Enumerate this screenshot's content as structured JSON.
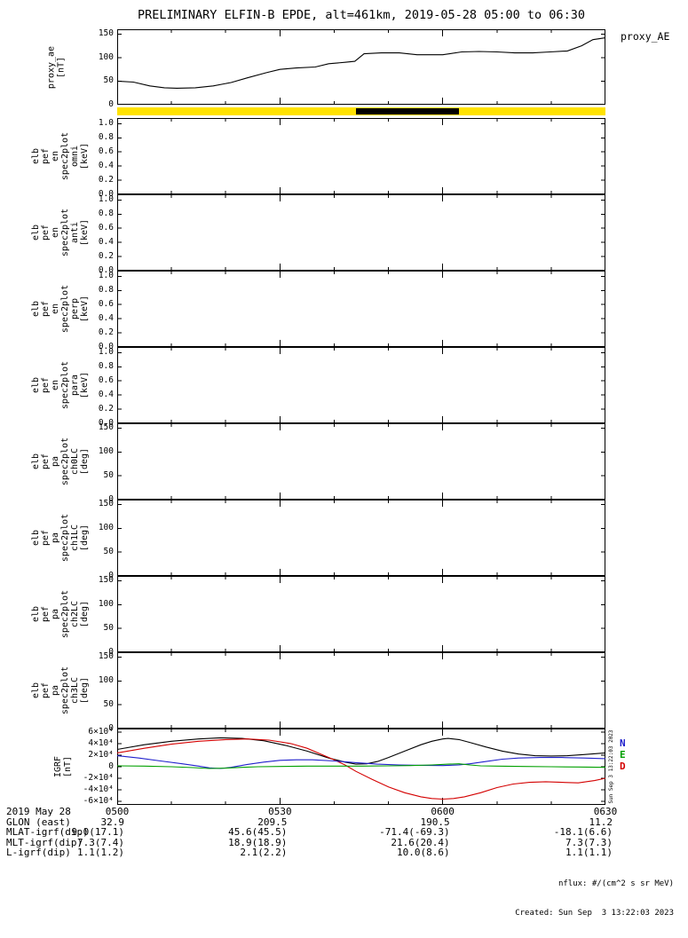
{
  "title": "PRELIMINARY ELFIN-B EPDE, alt=461km, 2019-05-28 05:00 to 06:30",
  "proxy_right_label": "proxy_AE",
  "time_axis": {
    "date": "2019 May 28",
    "labels": [
      "0500",
      "0530",
      "0600",
      "0630"
    ],
    "minutes": [
      0,
      30,
      60,
      90
    ],
    "minor_step_min": 10
  },
  "status_bar": {
    "bar_color": "#ffe200",
    "segment_color": "#000000",
    "segment_start_min": 44,
    "segment_end_min": 63
  },
  "panels": [
    {
      "id": "omni",
      "kind": "kev",
      "label_block1": [
        "elb",
        "pef",
        "en",
        "spec2plot"
      ],
      "label_block2": [
        "omni",
        "[keV]"
      ],
      "yticks": [
        0,
        0.2,
        0.4,
        0.6,
        0.8,
        1.0
      ],
      "ytick_labels": [
        "0.0",
        "0.2",
        "0.4",
        "0.6",
        "0.8",
        "1.0"
      ]
    },
    {
      "id": "anti",
      "kind": "kev",
      "label_block1": [
        "elb",
        "pef",
        "en",
        "spec2plot"
      ],
      "label_block2": [
        "anti",
        "[keV]"
      ],
      "yticks": [
        0,
        0.2,
        0.4,
        0.6,
        0.8,
        1.0
      ],
      "ytick_labels": [
        "0.0",
        "0.2",
        "0.4",
        "0.6",
        "0.8",
        "1.0"
      ]
    },
    {
      "id": "perp",
      "kind": "kev",
      "label_block1": [
        "elb",
        "pef",
        "en",
        "spec2plot"
      ],
      "label_block2": [
        "perp",
        "[keV]"
      ],
      "yticks": [
        0,
        0.2,
        0.4,
        0.6,
        0.8,
        1.0
      ],
      "ytick_labels": [
        "0.0",
        "0.2",
        "0.4",
        "0.6",
        "0.8",
        "1.0"
      ]
    },
    {
      "id": "para",
      "kind": "kev",
      "label_block1": [
        "elb",
        "pef",
        "en",
        "spec2plot"
      ],
      "label_block2": [
        "para",
        "[keV]"
      ],
      "yticks": [
        0,
        0.2,
        0.4,
        0.6,
        0.8,
        1.0
      ],
      "ytick_labels": [
        "0.0",
        "0.2",
        "0.4",
        "0.6",
        "0.8",
        "1.0"
      ]
    },
    {
      "id": "ch0LC",
      "kind": "deg",
      "label_block1": [
        "elb",
        "pef",
        "pa",
        "spec2plot"
      ],
      "label_block2": [
        "ch0LC",
        "[deg]"
      ],
      "yticks": [
        0,
        50,
        100,
        150
      ],
      "ytick_labels": [
        "0",
        "50",
        "100",
        "150"
      ]
    },
    {
      "id": "ch1LC",
      "kind": "deg",
      "label_block1": [
        "elb",
        "pef",
        "pa",
        "spec2plot"
      ],
      "label_block2": [
        "ch1LC",
        "[deg]"
      ],
      "yticks": [
        0,
        50,
        100,
        150
      ],
      "ytick_labels": [
        "0",
        "50",
        "100",
        "150"
      ]
    },
    {
      "id": "ch2LC",
      "kind": "deg",
      "label_block1": [
        "elb",
        "pef",
        "pa",
        "spec2plot"
      ],
      "label_block2": [
        "ch2LC",
        "[deg]"
      ],
      "yticks": [
        0,
        50,
        100,
        150
      ],
      "ytick_labels": [
        "0",
        "50",
        "100",
        "150"
      ]
    },
    {
      "id": "ch3LC",
      "kind": "deg",
      "label_block1": [
        "elb",
        "pef",
        "pa",
        "spec2plot"
      ],
      "label_block2": [
        "ch3LC",
        "[deg]"
      ],
      "yticks": [
        0,
        50,
        100,
        150
      ],
      "ytick_labels": [
        "0",
        "50",
        "100",
        "150"
      ]
    }
  ],
  "chart_data": [
    {
      "type": "line",
      "name": "proxy_AE",
      "ylabel_lines": [
        "proxy_ae",
        "[nT]"
      ],
      "ylim": [
        0,
        150
      ],
      "yticks": [
        0,
        50,
        100,
        150
      ],
      "ytick_labels": [
        "0",
        "50",
        "100",
        "150"
      ],
      "color": "#000000",
      "x_minutes": [
        0,
        3,
        6,
        8.7,
        11,
        14.4,
        17.7,
        21,
        24,
        27.5,
        30,
        33,
        36.5,
        39,
        42,
        43.8,
        45.5,
        48.7,
        52,
        55.3,
        60,
        63.5,
        66.7,
        70,
        73.3,
        76.6,
        79.8,
        83,
        85.6,
        87.7,
        90
      ],
      "values": [
        50,
        48,
        40,
        36,
        35,
        36,
        40,
        47,
        57,
        68,
        75,
        78,
        80,
        87,
        90,
        92,
        108,
        110,
        110,
        106,
        106,
        112,
        113,
        112,
        110,
        110,
        112,
        114,
        125,
        138,
        142
      ]
    },
    {
      "type": "line",
      "name": "IGRF",
      "ylabel_lines": [
        "IGRF",
        "[nT]"
      ],
      "ylim": [
        -60000,
        60000
      ],
      "yticks": [
        -60000,
        -40000,
        -20000,
        0,
        20000,
        40000,
        60000
      ],
      "ytick_labels": [
        "-6×10⁴",
        "-4×10⁴",
        "-2×10⁴",
        "0",
        "2×10⁴",
        "4×10⁴",
        "6×10⁴"
      ],
      "legend": [
        {
          "label": "N",
          "color": "#2020cc"
        },
        {
          "label": "E",
          "color": "#00a000"
        },
        {
          "label": "D",
          "color": "#d40000"
        }
      ],
      "series": [
        {
          "name": "B",
          "color": "#000000",
          "x_minutes": [
            0,
            5,
            10,
            15,
            19,
            23,
            27,
            31,
            35,
            39,
            42,
            44,
            46,
            48,
            50,
            53,
            56,
            58,
            60,
            61,
            63,
            65,
            68,
            71,
            74,
            77,
            80,
            83,
            86,
            90
          ],
          "values": [
            30000,
            38000,
            44000,
            48000,
            50000,
            49000,
            45000,
            37000,
            27000,
            15000,
            8000,
            4500,
            5000,
            9000,
            16000,
            27000,
            38000,
            44000,
            48000,
            49000,
            47000,
            42000,
            34000,
            27000,
            22000,
            19000,
            18500,
            19000,
            21000,
            24000
          ]
        },
        {
          "name": "D",
          "color": "#d40000",
          "x_minutes": [
            0,
            5,
            10,
            15,
            20,
            24,
            28,
            32,
            35,
            38,
            40,
            42,
            44,
            47,
            50,
            53,
            56,
            58,
            60,
            62,
            64,
            67,
            70,
            73,
            76,
            79,
            82,
            85,
            88,
            90
          ],
          "values": [
            24000,
            32000,
            39000,
            44000,
            47000,
            48000,
            46000,
            40000,
            32000,
            20000,
            12000,
            3000,
            -8000,
            -22000,
            -35000,
            -45000,
            -52000,
            -55000,
            -56000,
            -55000,
            -52000,
            -45000,
            -36000,
            -30000,
            -27000,
            -26000,
            -27000,
            -28000,
            -24000,
            -20000
          ]
        },
        {
          "name": "N",
          "color": "#2020cc",
          "x_minutes": [
            0,
            4,
            8,
            12,
            15,
            17,
            19,
            21,
            24,
            27,
            30,
            33,
            36,
            40,
            44,
            48,
            52,
            56,
            60,
            63,
            65,
            68,
            71,
            74,
            78,
            82,
            86,
            90
          ],
          "values": [
            19000,
            15000,
            10000,
            5000,
            1000,
            -2000,
            -3000,
            -1000,
            4000,
            8000,
            11000,
            12000,
            12000,
            10000,
            7000,
            4500,
            3000,
            2500,
            2000,
            3000,
            5000,
            9000,
            13000,
            15000,
            16000,
            16000,
            15000,
            14000
          ]
        },
        {
          "name": "E",
          "color": "#00a000",
          "x_minutes": [
            0,
            5,
            10,
            14,
            17,
            20,
            23,
            26,
            30,
            35,
            40,
            45,
            50,
            54,
            58,
            61,
            63,
            65,
            67,
            70,
            75,
            80,
            85,
            90
          ],
          "values": [
            1500,
            1000,
            0,
            -1500,
            -3000,
            -2500,
            -1000,
            0,
            500,
            1000,
            1000,
            1000,
            1500,
            2000,
            3000,
            4500,
            5000,
            3000,
            1500,
            1000,
            500,
            0,
            -500,
            -1000
          ]
        }
      ]
    }
  ],
  "bottom_rows": [
    {
      "label": "2019 May 28",
      "values": [
        "0500",
        "0530",
        "0600",
        "0630"
      ]
    },
    {
      "label": "GLON (east)",
      "values": [
        "32.9",
        "209.5",
        "190.5",
        "11.2"
      ]
    },
    {
      "label": "MLAT-igrf(dip)",
      "values": [
        "9.0(17.1)",
        "45.6(45.5)",
        "-71.4(-69.3)",
        "-18.1(6.6)"
      ]
    },
    {
      "label": "MLT-igrf(dip)",
      "values": [
        "7.3(7.4)",
        "18.9(18.9)",
        "21.6(20.4)",
        "7.3(7.3)"
      ]
    },
    {
      "label": "L-igrf(dip)",
      "values": [
        "1.1(1.2)",
        "2.1(2.2)",
        "10.0(8.6)",
        "1.1(1.1)"
      ]
    }
  ],
  "footer": {
    "nflux": "nflux: #/(cm^2 s sr MeV)",
    "created": "Created: Sun Sep  3 13:22:03 2023"
  },
  "side_text": "Sun Sep  3 13:22:03 2023"
}
